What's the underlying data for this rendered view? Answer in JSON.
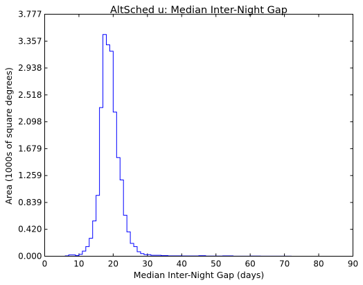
{
  "chart_data": {
    "type": "histogram",
    "title": "AltSched  u: Median Inter-Night Gap",
    "xlabel": "Median Inter-Night Gap (days)",
    "ylabel": "Area (1000s of square degrees)",
    "xlim": [
      0,
      90
    ],
    "ylim": [
      0,
      3.777
    ],
    "xticks": [
      "0",
      "10",
      "20",
      "30",
      "40",
      "50",
      "60",
      "70",
      "80",
      "90"
    ],
    "yticks": [
      "0.000",
      "0.420",
      "0.839",
      "1.259",
      "1.679",
      "2.098",
      "2.518",
      "2.938",
      "3.357",
      "3.777"
    ],
    "grid": false,
    "legend": "none",
    "series_color": "#0000ff",
    "bin_width": 1,
    "bins": [
      {
        "x0": 0,
        "y": 0.0
      },
      {
        "x0": 6,
        "y": 0.005
      },
      {
        "x0": 7,
        "y": 0.02
      },
      {
        "x0": 9,
        "y": 0.01
      },
      {
        "x0": 10,
        "y": 0.03
      },
      {
        "x0": 11,
        "y": 0.08
      },
      {
        "x0": 12,
        "y": 0.15
      },
      {
        "x0": 13,
        "y": 0.28
      },
      {
        "x0": 14,
        "y": 0.55
      },
      {
        "x0": 15,
        "y": 0.95
      },
      {
        "x0": 16,
        "y": 2.32
      },
      {
        "x0": 17,
        "y": 3.46
      },
      {
        "x0": 18,
        "y": 3.3
      },
      {
        "x0": 19,
        "y": 3.2
      },
      {
        "x0": 20,
        "y": 2.25
      },
      {
        "x0": 21,
        "y": 1.54
      },
      {
        "x0": 22,
        "y": 1.19
      },
      {
        "x0": 23,
        "y": 0.64
      },
      {
        "x0": 24,
        "y": 0.38
      },
      {
        "x0": 25,
        "y": 0.2
      },
      {
        "x0": 26,
        "y": 0.15
      },
      {
        "x0": 27,
        "y": 0.07
      },
      {
        "x0": 28,
        "y": 0.04
      },
      {
        "x0": 29,
        "y": 0.025
      },
      {
        "x0": 31,
        "y": 0.015
      },
      {
        "x0": 34,
        "y": 0.01
      },
      {
        "x0": 36,
        "y": 0.006
      },
      {
        "x0": 40,
        "y": 0.004
      },
      {
        "x0": 45,
        "y": 0.008
      },
      {
        "x0": 47,
        "y": 0.003
      },
      {
        "x0": 52,
        "y": 0.006
      },
      {
        "x0": 55,
        "y": 0.002
      },
      {
        "x0": 60,
        "y": 0.003
      },
      {
        "x0": 63,
        "y": 0.001
      },
      {
        "x0": 70,
        "y": 0.002
      },
      {
        "x0": 72,
        "y": 0.0
      }
    ]
  }
}
